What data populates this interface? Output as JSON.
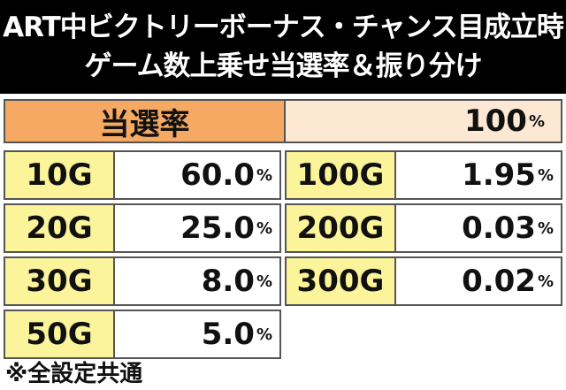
{
  "title": {
    "line1": "ART中ビクトリーボーナス・チャンス目成立時",
    "line2": "ゲーム数上乗せ当選率＆振り分け"
  },
  "rate": {
    "label": "当選率",
    "value": "100",
    "unit": "%"
  },
  "rows": [
    {
      "left_g": "10G",
      "left_v": "60.0",
      "right_g": "100G",
      "right_v": "1.95"
    },
    {
      "left_g": "20G",
      "left_v": "25.0",
      "right_g": "200G",
      "right_v": "0.03"
    },
    {
      "left_g": "30G",
      "left_v": "8.0",
      "right_g": "300G",
      "right_v": "0.02"
    },
    {
      "left_g": "50G",
      "left_v": "5.0"
    }
  ],
  "unit": "%",
  "note": "※全設定共通",
  "colors": {
    "header_bg": "#000000",
    "rate_label_bg": "#f5a963",
    "rate_value_bg": "#fde8d3",
    "g_cell_bg": "#fbf49a"
  }
}
